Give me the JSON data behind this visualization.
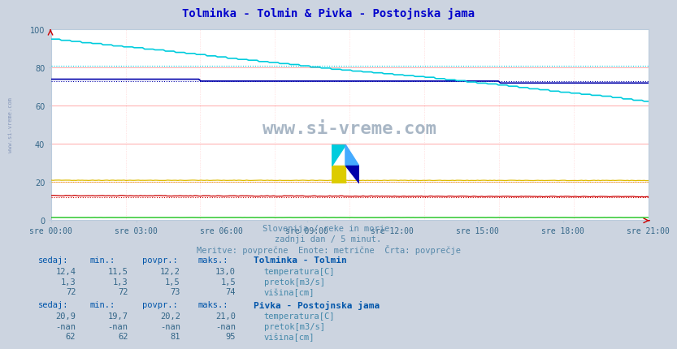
{
  "title": "Tolminka - Tolmin & Pivka - Postojnska jama",
  "title_color": "#0000cc",
  "bg_color": "#ccd4e0",
  "plot_bg_color": "#ffffff",
  "grid_color_h": "#ffaaaa",
  "grid_color_v": "#ffcccc",
  "xlabel_texts": [
    "sre 00:00",
    "sre 03:00",
    "sre 06:00",
    "sre 09:00",
    "sre 12:00",
    "sre 15:00",
    "sre 18:00",
    "sre 21:00"
  ],
  "n_points": 288,
  "subtitle1": "Slovenija / reke in morje.",
  "subtitle2": "zadnji dan / 5 minut.",
  "subtitle3": "Meritve: povprečne  Enote: metrične  Črta: povprečje",
  "subtitle_color": "#5588aa",
  "watermark": "www.si-vreme.com",
  "watermark_color": "#99aabb",
  "legend_header_color": "#0055aa",
  "legend_label_color": "#4488aa",
  "legend_value_color": "#336688",
  "station1_name": "Tolminka - Tolmin",
  "station1": {
    "temp": {
      "sedaj": "12,4",
      "min": "11,5",
      "povpr": "12,2",
      "maks": "13,0",
      "color": "#cc0000",
      "label": "temperatura[C]",
      "avg": 12.2
    },
    "pretok": {
      "sedaj": "1,3",
      "min": "1,3",
      "povpr": "1,5",
      "maks": "1,5",
      "color": "#00bb00",
      "label": "pretok[m3/s]",
      "avg": 1.5
    },
    "visina": {
      "sedaj": "72",
      "min": "72",
      "povpr": "73",
      "maks": "74",
      "color": "#0000aa",
      "label": "višina[cm]",
      "avg": 73
    }
  },
  "station2_name": "Pivka - Postojnska jama",
  "station2": {
    "temp": {
      "sedaj": "20,9",
      "min": "19,7",
      "povpr": "20,2",
      "maks": "21,0",
      "color": "#ddbb00",
      "label": "temperatura[C]",
      "avg": 20.2
    },
    "pretok": {
      "sedaj": "-nan",
      "min": "-nan",
      "povpr": "-nan",
      "maks": "-nan",
      "color": "#cc44cc",
      "label": "pretok[m3/s]"
    },
    "visina": {
      "sedaj": "62",
      "min": "62",
      "povpr": "81",
      "maks": "95",
      "color": "#00ccdd",
      "label": "višina[cm]",
      "avg": 81
    }
  },
  "ymin": 0,
  "ymax": 100,
  "yticks": [
    0,
    20,
    40,
    60,
    80,
    100
  ]
}
